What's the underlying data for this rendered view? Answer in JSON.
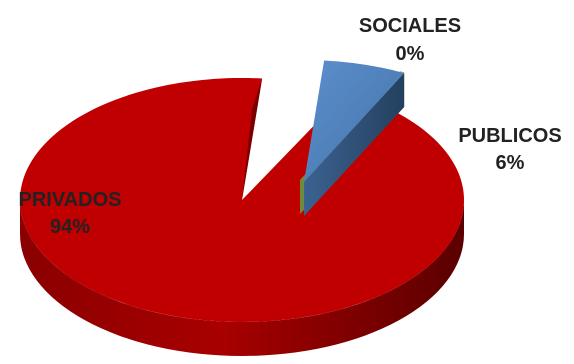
{
  "chart_data": {
    "type": "pie",
    "title": "",
    "three_d": true,
    "categories": [
      "PRIVADOS",
      "PUBLICOS",
      "SOCIALES"
    ],
    "values": [
      94,
      6,
      0
    ],
    "value_labels": [
      "94%",
      "6%",
      "0%"
    ],
    "colors": [
      "#c00000",
      "#4f81bd",
      "#9bbb59"
    ],
    "exploded": [
      "PUBLICOS",
      "SOCIALES"
    ],
    "legend": "none"
  }
}
